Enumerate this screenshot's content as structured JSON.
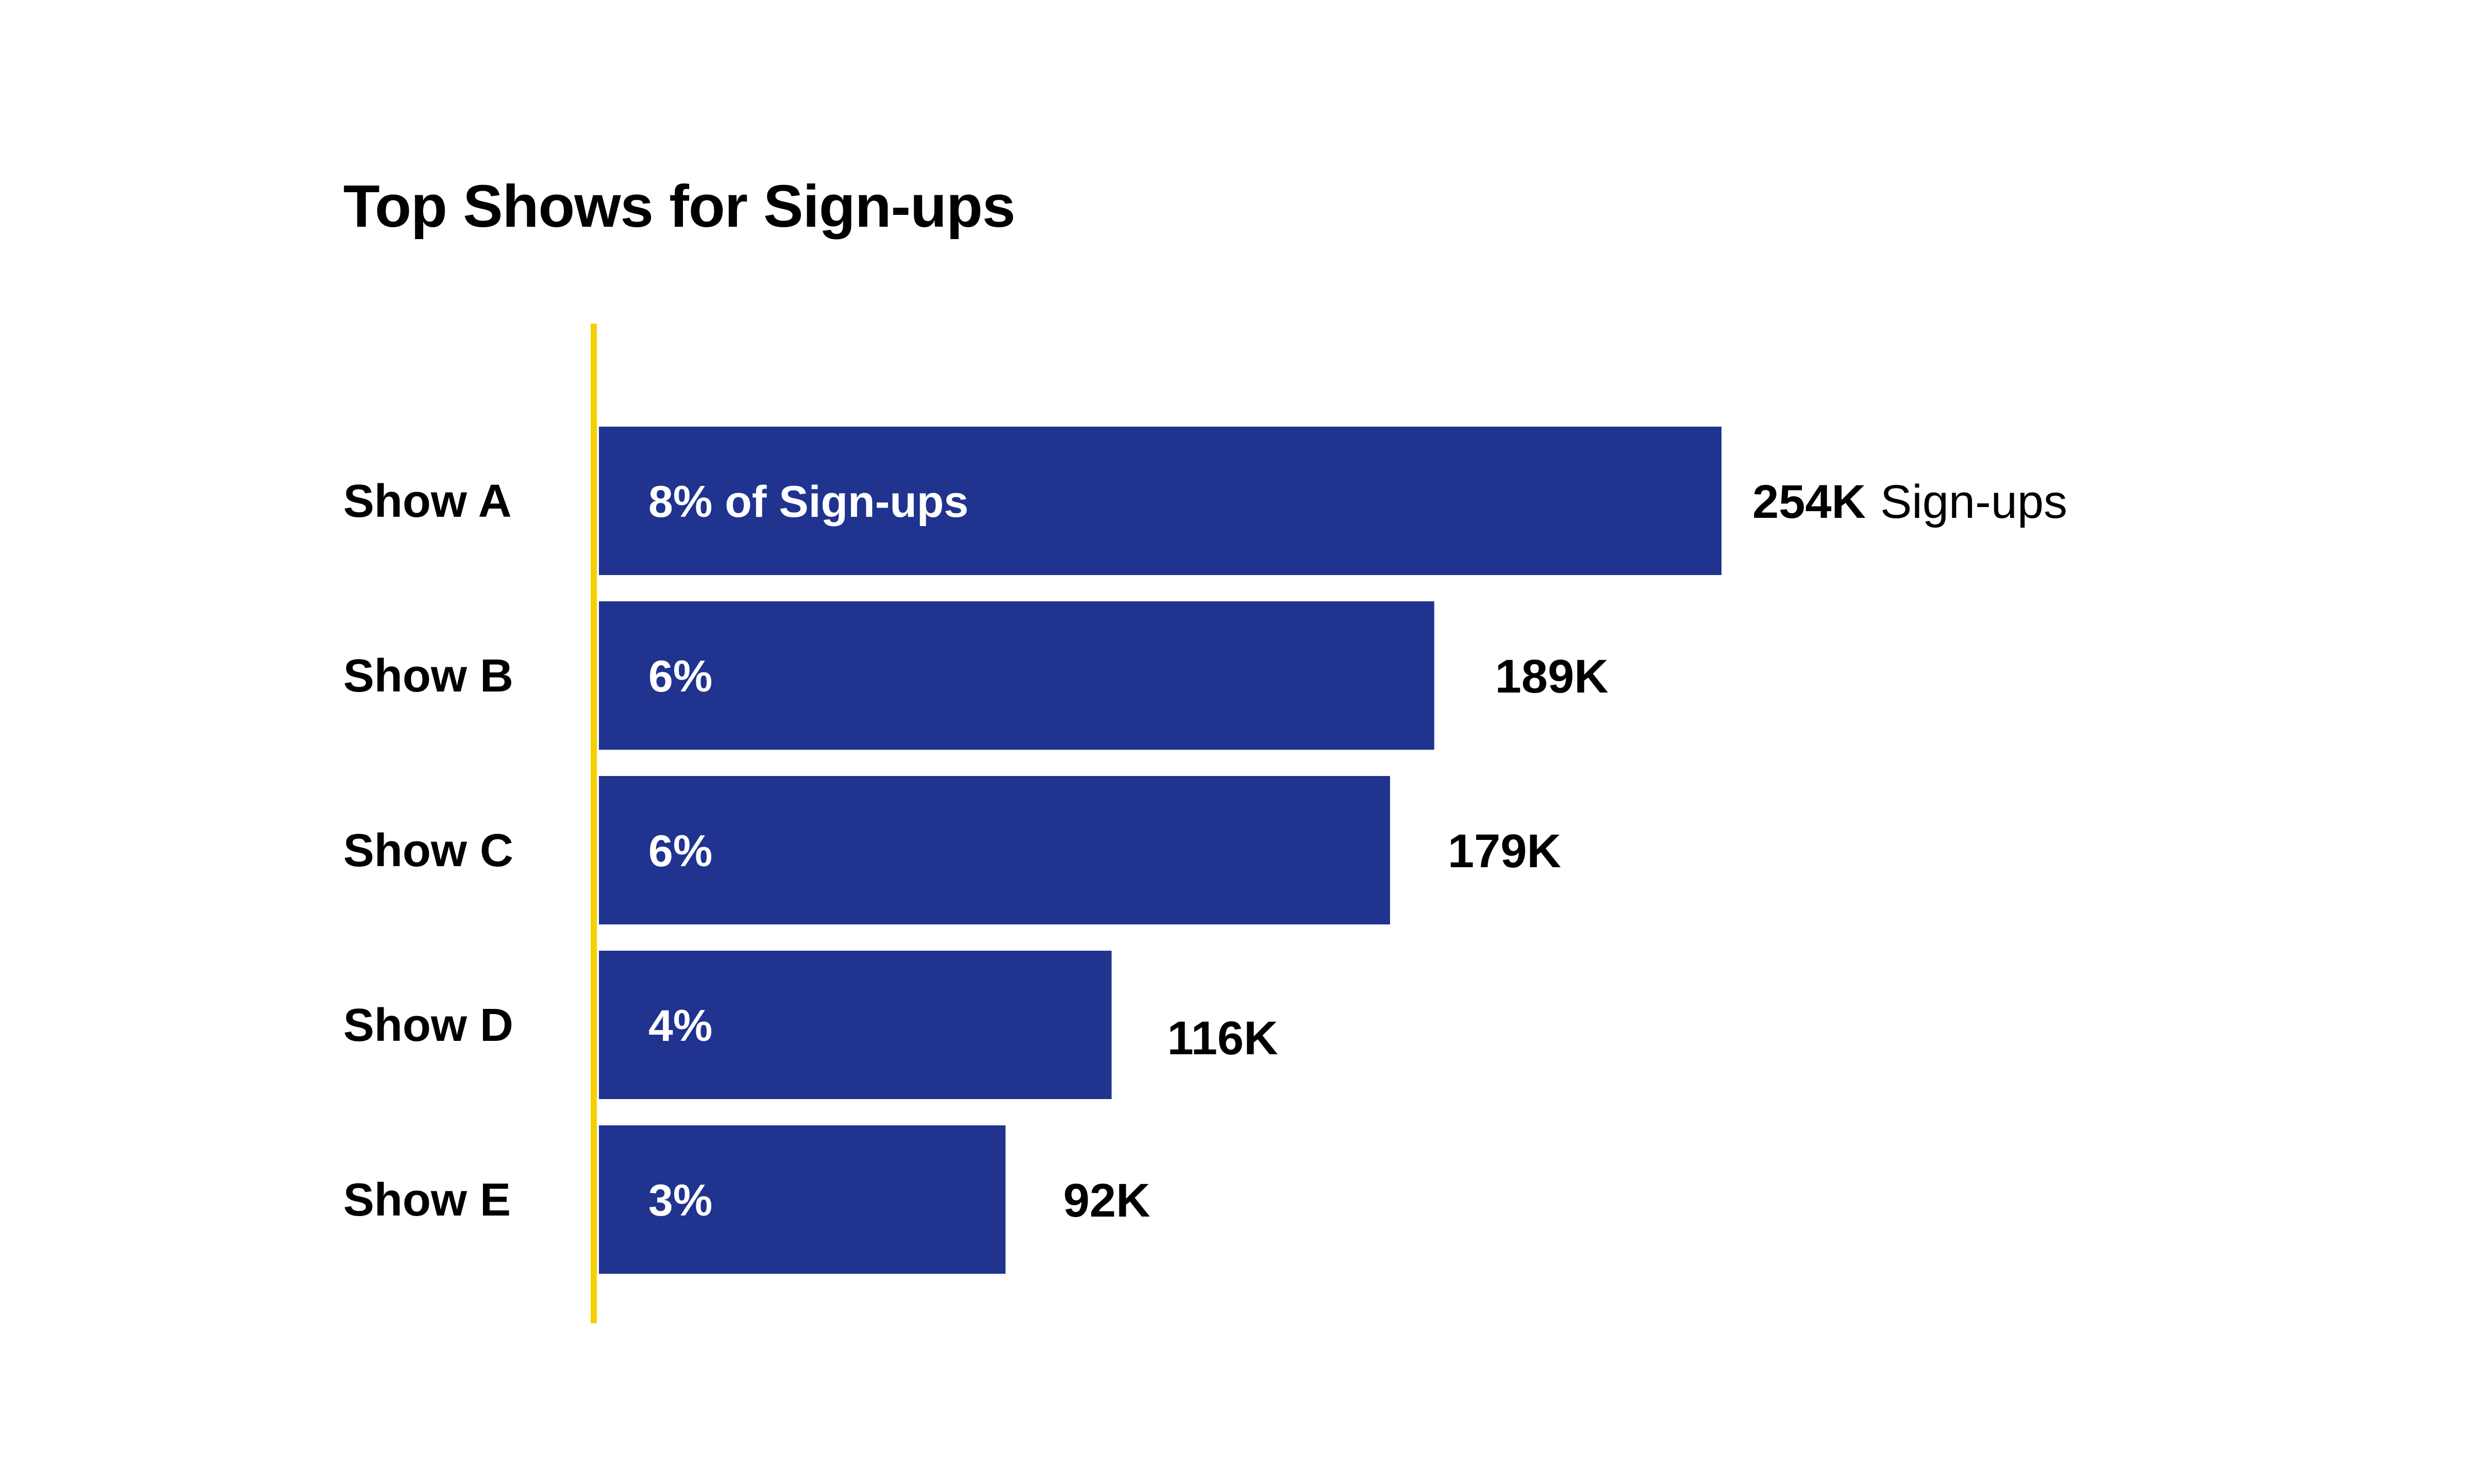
{
  "chart_data": {
    "type": "bar",
    "orientation": "horizontal",
    "title": "Top Shows for Sign-ups",
    "xlabel": "",
    "ylabel": "",
    "grid": false,
    "legend": "none",
    "categories": [
      "Show A",
      "Show B",
      "Show C",
      "Show D",
      "Show E"
    ],
    "values": [
      254,
      189,
      179,
      116,
      92
    ],
    "value_unit": "K",
    "bar_labels": [
      "8% of Sign-ups",
      "6%",
      "6%",
      "4%",
      "3%"
    ],
    "value_labels": [
      "254K",
      "189K",
      "179K",
      "116K",
      "92K"
    ],
    "value_suffix_first": "Sign-ups",
    "xlim": [
      0,
      254
    ],
    "colors": {
      "bar": "#1f338f",
      "axis_line": "#f5d000",
      "text": "#000000",
      "bar_text": "#ffffff"
    }
  }
}
